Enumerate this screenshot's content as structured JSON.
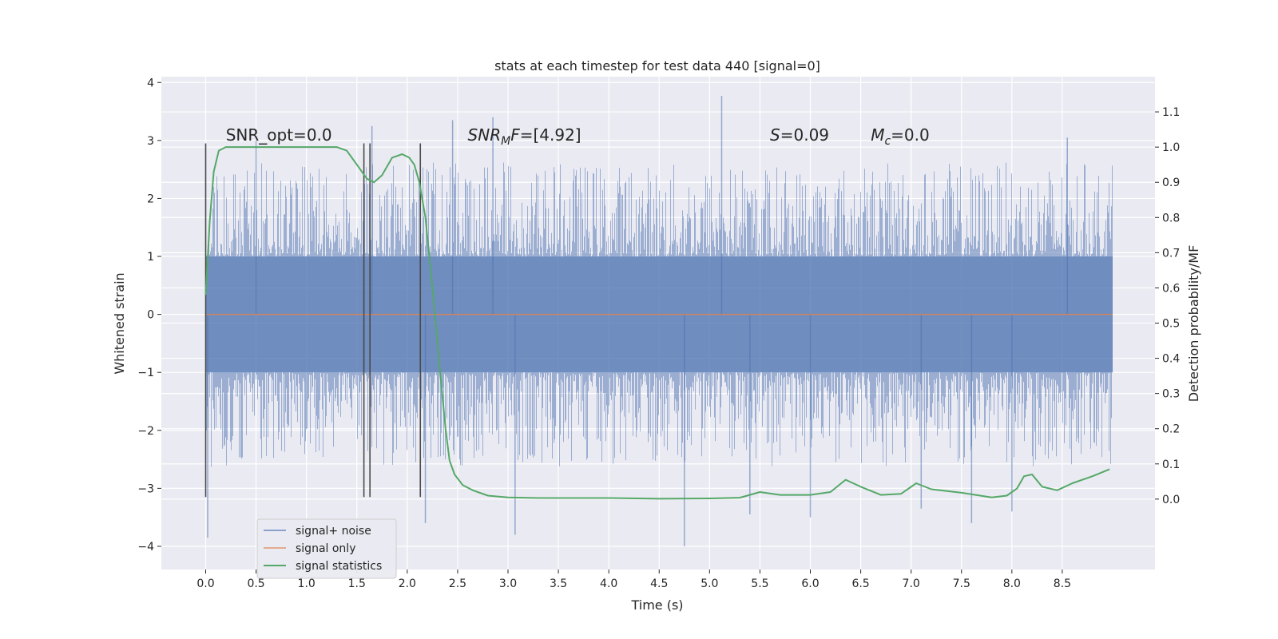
{
  "chart_data": {
    "type": "line",
    "title": "stats at each timestep for test data 440 [signal=0]",
    "xlabel": "Time (s)",
    "ylabel": "Whitened strain",
    "y2label": "Detection probability/MF",
    "xlim": [
      -0.44,
      9.42
    ],
    "ylim": [
      -4.4,
      4.1
    ],
    "y2lim": [
      -0.2,
      1.2
    ],
    "xticks": [
      0.0,
      0.5,
      1.0,
      1.5,
      2.0,
      2.5,
      3.0,
      3.5,
      4.0,
      4.5,
      5.0,
      5.5,
      6.0,
      6.5,
      7.0,
      7.5,
      8.0,
      8.5
    ],
    "xtick_labels": [
      "0.0",
      "0.5",
      "1.0",
      "1.5",
      "2.0",
      "2.5",
      "3.0",
      "3.5",
      "4.0",
      "4.5",
      "5.0",
      "5.5",
      "6.0",
      "6.5",
      "7.0",
      "7.5",
      "8.0",
      "8.5"
    ],
    "yticks": [
      -4,
      -3,
      -2,
      -1,
      0,
      1,
      2,
      3,
      4
    ],
    "ytick_labels": [
      "−4",
      "−3",
      "−2",
      "−1",
      "0",
      "1",
      "2",
      "3",
      "4"
    ],
    "y2ticks": [
      0.0,
      0.1,
      0.2,
      0.3,
      0.4,
      0.5,
      0.6,
      0.7,
      0.8,
      0.9,
      1.0,
      1.1
    ],
    "y2tick_labels": [
      "0.0",
      "0.1",
      "0.2",
      "0.3",
      "0.4",
      "0.5",
      "0.6",
      "0.7",
      "0.8",
      "0.9",
      "1.0",
      "1.1"
    ],
    "grid": true,
    "legend_position": "lower-left",
    "series": [
      {
        "name": "signal+ noise",
        "axis": "left",
        "color": "#4c72b0",
        "kind": "noise-envelope",
        "x_range": [
          0.0,
          9.0
        ],
        "core_range": [
          -1.0,
          1.0
        ],
        "typical_peak": [
          -2.3,
          2.3
        ],
        "extreme_peaks": [
          {
            "x": 0.02,
            "y": -3.85
          },
          {
            "x": 0.5,
            "y": 3.0
          },
          {
            "x": 1.65,
            "y": 3.25
          },
          {
            "x": 2.18,
            "y": -3.6
          },
          {
            "x": 2.45,
            "y": 3.35
          },
          {
            "x": 2.85,
            "y": 3.4
          },
          {
            "x": 3.07,
            "y": -3.8
          },
          {
            "x": 4.75,
            "y": -4.0
          },
          {
            "x": 5.12,
            "y": 3.77
          },
          {
            "x": 5.4,
            "y": -3.45
          },
          {
            "x": 6.0,
            "y": -3.5
          },
          {
            "x": 7.1,
            "y": -3.35
          },
          {
            "x": 7.6,
            "y": -3.6
          },
          {
            "x": 8.0,
            "y": -3.4
          },
          {
            "x": 8.55,
            "y": 3.05
          }
        ]
      },
      {
        "name": "signal only",
        "axis": "left",
        "color": "#dd8452",
        "x": [
          0.0,
          9.0
        ],
        "y": [
          0.0,
          0.0
        ]
      },
      {
        "name": "signal statistics",
        "axis": "right",
        "color": "#55a868",
        "x": [
          0.0,
          0.04,
          0.08,
          0.13,
          0.2,
          0.3,
          0.5,
          0.8,
          1.0,
          1.2,
          1.3,
          1.4,
          1.5,
          1.6,
          1.67,
          1.75,
          1.85,
          1.95,
          2.02,
          2.07,
          2.12,
          2.18,
          2.25,
          2.32,
          2.38,
          2.42,
          2.47,
          2.55,
          2.65,
          2.8,
          3.0,
          3.3,
          4.0,
          4.5,
          5.0,
          5.3,
          5.5,
          5.7,
          6.0,
          6.2,
          6.35,
          6.5,
          6.7,
          6.9,
          7.05,
          7.2,
          7.5,
          7.8,
          7.95,
          8.05,
          8.12,
          8.2,
          8.3,
          8.45,
          8.6,
          8.8,
          8.97
        ],
        "y": [
          0.58,
          0.79,
          0.93,
          0.99,
          1.0,
          1.0,
          1.0,
          1.0,
          1.0,
          1.0,
          1.0,
          0.99,
          0.95,
          0.91,
          0.9,
          0.92,
          0.97,
          0.98,
          0.97,
          0.95,
          0.9,
          0.8,
          0.6,
          0.38,
          0.2,
          0.11,
          0.07,
          0.04,
          0.025,
          0.01,
          0.005,
          0.003,
          0.003,
          0.001,
          0.002,
          0.004,
          0.02,
          0.012,
          0.012,
          0.02,
          0.055,
          0.035,
          0.012,
          0.015,
          0.045,
          0.028,
          0.018,
          0.005,
          0.01,
          0.03,
          0.065,
          0.07,
          0.035,
          0.025,
          0.045,
          0.065,
          0.085
        ]
      }
    ],
    "vlines": [
      0.0,
      1.57,
      1.63,
      2.13
    ],
    "vlines_range": [
      -3.15,
      2.95
    ],
    "annotations": [
      {
        "text": "SNR_opt=0.0",
        "x": 0.2,
        "y": 3.0
      },
      {
        "text": "SNR_MF=[4.92]",
        "x": 2.6,
        "y": 3.0
      },
      {
        "text": "S=0.09",
        "x": 5.6,
        "y": 3.0
      },
      {
        "text": "M_c=0.0",
        "x": 6.6,
        "y": 3.0
      }
    ]
  }
}
